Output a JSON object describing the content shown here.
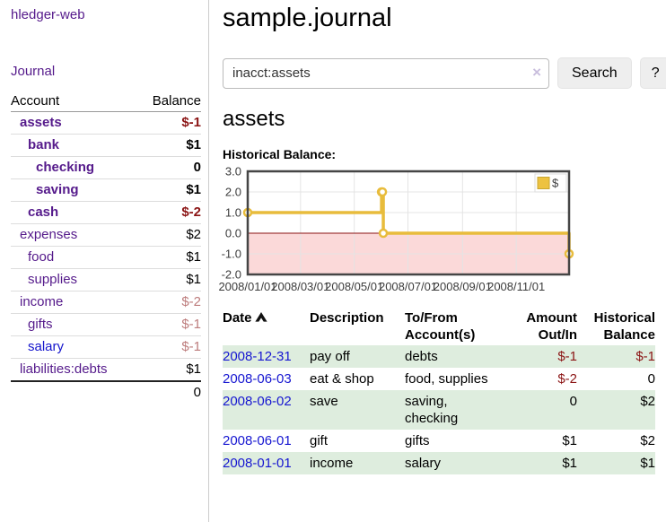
{
  "app": {
    "title": "hledger-web",
    "nav_journal": "Journal"
  },
  "colors": {
    "link_purple": "#551A8B",
    "link_blue": "#1414CC",
    "negative_strong": "#8B1414",
    "negative_soft": "#BD7C7C",
    "row_shade_green": "#DEEDDE"
  },
  "sidebar": {
    "account_header": "Account",
    "balance_header": "Balance",
    "accounts": [
      {
        "name": "assets",
        "depth": 1,
        "bold": true,
        "balance": "$-1",
        "neg": "strong",
        "link": "purple"
      },
      {
        "name": "bank",
        "depth": 2,
        "bold": true,
        "balance": "$1",
        "neg": "none",
        "link": "purple"
      },
      {
        "name": "checking",
        "depth": 3,
        "bold": true,
        "balance": "0",
        "neg": "none",
        "link": "purple"
      },
      {
        "name": "saving",
        "depth": 3,
        "bold": true,
        "balance": "$1",
        "neg": "none",
        "link": "purple"
      },
      {
        "name": "cash",
        "depth": 2,
        "bold": true,
        "balance": "$-2",
        "neg": "strong",
        "link": "purple"
      },
      {
        "name": "expenses",
        "depth": 1,
        "bold": false,
        "balance": "$2",
        "neg": "none",
        "link": "purple"
      },
      {
        "name": "food",
        "depth": 2,
        "bold": false,
        "balance": "$1",
        "neg": "none",
        "link": "purple"
      },
      {
        "name": "supplies",
        "depth": 2,
        "bold": false,
        "balance": "$1",
        "neg": "none",
        "link": "purple"
      },
      {
        "name": "income",
        "depth": 1,
        "bold": false,
        "balance": "$-2",
        "neg": "soft",
        "link": "purple"
      },
      {
        "name": "gifts",
        "depth": 2,
        "bold": false,
        "balance": "$-1",
        "neg": "soft",
        "link": "purple"
      },
      {
        "name": "salary",
        "depth": 2,
        "bold": false,
        "balance": "$-1",
        "neg": "soft",
        "link": "blue"
      },
      {
        "name": "liabilities:debts",
        "depth": 1,
        "bold": false,
        "balance": "$1",
        "neg": "none",
        "link": "purple"
      }
    ],
    "total": "0"
  },
  "main": {
    "title": "sample.journal",
    "search": {
      "value": "inacct:assets",
      "clear_icon": "×",
      "button_label": "Search",
      "help_label": "?"
    },
    "account_heading": "assets",
    "chart_label": "Historical Balance:"
  },
  "chart_data": {
    "type": "line",
    "step": true,
    "title": "Historical Balance",
    "series": [
      {
        "name": "$",
        "points": [
          [
            "2008-01-01",
            1
          ],
          [
            "2008-06-01",
            2
          ],
          [
            "2008-06-02",
            2
          ],
          [
            "2008-06-03",
            0
          ],
          [
            "2008-12-31",
            -1
          ]
        ]
      }
    ],
    "xlim": [
      "2008-01-01",
      "2008-12-31"
    ],
    "ylim": [
      -2,
      3
    ],
    "yticks": [
      3,
      2,
      1,
      0,
      -1,
      -2
    ],
    "ytick_labels": [
      "3.0",
      "2.0",
      "1.0",
      "0.0",
      "-1.0",
      "-2.0"
    ],
    "xticks": [
      "2008-01-01",
      "2008-03-01",
      "2008-05-01",
      "2008-07-01",
      "2008-09-01",
      "2008-11-01"
    ],
    "xtick_labels": [
      "2008/01/01",
      "2008/03/01",
      "2008/05/01",
      "2008/07/01",
      "2008/09/01",
      "2008/11/01"
    ],
    "grid": true,
    "legend": {
      "label": "$",
      "position": "top-right"
    },
    "colors": {
      "line": "#E8BC3C",
      "marker_fill": "#FFFFFF",
      "legend_fill": "#EDC240",
      "legend_border": "#C9A52F",
      "negative_region": "#FBD9D9",
      "zero_line": "#8B1212",
      "grid": "#E4E4E4",
      "border": "#454545",
      "tick_text": "#3C3C3C"
    }
  },
  "register": {
    "headers": {
      "date": "Date",
      "description": "Description",
      "accounts": "To/From Account(s)",
      "amount": "Amount Out/In",
      "balance": "Historical Balance"
    },
    "rows": [
      {
        "date": "2008-12-31",
        "description": "pay off",
        "accounts": "debts",
        "amount": "$-1",
        "amount_neg": true,
        "balance": "$-1",
        "balance_neg": true,
        "shaded": true
      },
      {
        "date": "2008-06-03",
        "description": "eat & shop",
        "accounts": "food, supplies",
        "amount": "$-2",
        "amount_neg": true,
        "balance": "0",
        "balance_neg": false,
        "shaded": false
      },
      {
        "date": "2008-06-02",
        "description": "save",
        "accounts": "saving, checking",
        "amount": "0",
        "amount_neg": false,
        "balance": "$2",
        "balance_neg": false,
        "shaded": true
      },
      {
        "date": "2008-06-01",
        "description": "gift",
        "accounts": "gifts",
        "amount": "$1",
        "amount_neg": false,
        "balance": "$2",
        "balance_neg": false,
        "shaded": false
      },
      {
        "date": "2008-01-01",
        "description": "income",
        "accounts": "salary",
        "amount": "$1",
        "amount_neg": false,
        "balance": "$1",
        "balance_neg": false,
        "shaded": true
      }
    ]
  }
}
